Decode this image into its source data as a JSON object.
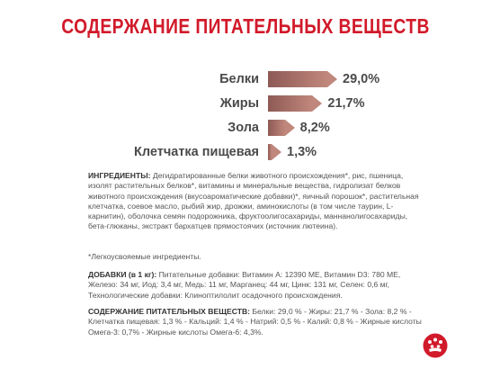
{
  "title": "СОДЕРЖАНИЕ ПИТАТЕЛЬНЫХ ВЕЩЕСТВ",
  "chart_data": {
    "type": "bar",
    "categories": [
      "Белки",
      "Жиры",
      "Зола",
      "Клетчатка пищевая"
    ],
    "values": [
      29.0,
      21.7,
      8.2,
      1.3
    ],
    "value_labels": [
      "29,0%",
      "21,7%",
      "8,2%",
      "1,3%"
    ],
    "title": "",
    "xlabel": "",
    "ylabel": "",
    "bar_color": "#a36b64"
  },
  "ingredients": {
    "heading": "ИНГРЕДИЕНТЫ:",
    "text": " Дегидратированные белки животного происхождения*, рис, пшеница, изолят растительных белков*, витамины и минеральные вещества, гидролизат белков животного происхождения (вкусоароматические добавки)*, яичный порошок*, растительная клетчатка, соевое масло, рыбий жир, дрожжи, аминокислоты (в том числе таурин, L-карнитин), оболочка семян подорожника, фруктоолигосахариды, маннанолигосахариды, бета-глюканы, экстракт бархатцев прямостоячих (источник лютеина)."
  },
  "footnote": "*Легкоусвояемые ингредиенты.",
  "additives": {
    "heading": "ДОБАВКИ (в 1 кг):",
    "text": " Питательные добавки: Витамин A: 12390 МЕ, Витамин D3: 780 МЕ, Железо: 34 мг, Иод: 3,4 мг, Медь: 11 мг, Марганец: 44 мг, Цинк: 131 мг, Селен: 0,6 мг, Технологические добавки: Клиноптилолит осадочного происхождения."
  },
  "nutrients": {
    "heading": "СОДЕРЖАНИЕ ПИТАТЕЛЬНЫХ ВЕЩЕСТВ:",
    "text": " Белки: 29,0 % - Жиры: 21,7 % - Зола: 8,2 % - Клетчатка пищевая: 1,3 % - Кальций: 1,4 % - Натрий: 0,5 % - Калий: 0,8 % - Жирные кислоты Омега-3: 0,7% - Жирные кислоты Омега-6: 4,3%."
  },
  "colors": {
    "title": "#d11a2a",
    "logo": "#d11a2a",
    "text": "#555555"
  },
  "logo_icon": "royal-canin-crown-icon"
}
